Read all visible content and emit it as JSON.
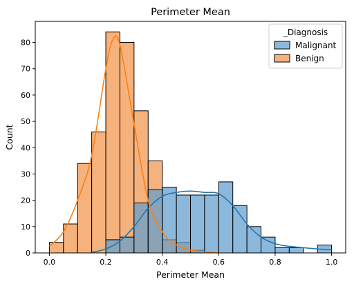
{
  "chart_data": {
    "type": "bar",
    "title": "Perimeter Mean",
    "xlabel": "Perimeter Mean",
    "ylabel": "Count",
    "xlim": [
      -0.05,
      1.05
    ],
    "ylim": [
      0,
      88
    ],
    "x_ticks": [
      0.0,
      0.2,
      0.4,
      0.6,
      0.8,
      1.0
    ],
    "x_tick_labels": [
      "0.0",
      "0.2",
      "0.4",
      "0.6",
      "0.8",
      "1.0"
    ],
    "y_ticks": [
      0,
      10,
      20,
      30,
      40,
      50,
      60,
      70,
      80
    ],
    "y_tick_labels": [
      "0",
      "10",
      "20",
      "30",
      "40",
      "50",
      "60",
      "70",
      "80"
    ],
    "bin_edges": [
      0.0,
      0.05,
      0.1,
      0.15,
      0.2,
      0.25,
      0.3,
      0.35,
      0.4,
      0.45,
      0.5,
      0.55,
      0.6,
      0.65,
      0.7,
      0.75,
      0.8,
      0.85,
      0.9,
      0.95,
      1.0
    ],
    "legend": {
      "title": "_Diagnosis",
      "position": "top-right"
    },
    "series": [
      {
        "name": "Malignant",
        "color": "#5f9ccf",
        "values": [
          0,
          0,
          0,
          0,
          5,
          6,
          19,
          24,
          25,
          22,
          22,
          22,
          27,
          18,
          10,
          6,
          2,
          2,
          0,
          3
        ],
        "kde": [
          [
            0.15,
            0.2
          ],
          [
            0.2,
            1.5
          ],
          [
            0.25,
            4.5
          ],
          [
            0.3,
            10
          ],
          [
            0.35,
            17
          ],
          [
            0.4,
            21.5
          ],
          [
            0.45,
            23
          ],
          [
            0.5,
            23.5
          ],
          [
            0.55,
            23
          ],
          [
            0.6,
            22.5
          ],
          [
            0.65,
            18
          ],
          [
            0.7,
            11
          ],
          [
            0.75,
            6
          ],
          [
            0.8,
            3.5
          ],
          [
            0.85,
            2.5
          ],
          [
            0.9,
            2
          ],
          [
            0.95,
            1.5
          ],
          [
            1.0,
            1.2
          ]
        ]
      },
      {
        "name": "Benign",
        "color": "#f5a465",
        "values": [
          4,
          11,
          34,
          46,
          84,
          80,
          54,
          35,
          5,
          4,
          1,
          0,
          0,
          0,
          0,
          0,
          0,
          0,
          0,
          0
        ],
        "kde": [
          [
            0.0,
            2.5
          ],
          [
            0.05,
            8
          ],
          [
            0.1,
            20
          ],
          [
            0.15,
            37
          ],
          [
            0.2,
            70
          ],
          [
            0.225,
            81
          ],
          [
            0.25,
            79
          ],
          [
            0.3,
            49
          ],
          [
            0.35,
            20
          ],
          [
            0.4,
            8
          ],
          [
            0.45,
            3
          ],
          [
            0.5,
            1
          ],
          [
            0.55,
            0.5
          ],
          [
            0.6,
            0
          ]
        ]
      }
    ]
  }
}
